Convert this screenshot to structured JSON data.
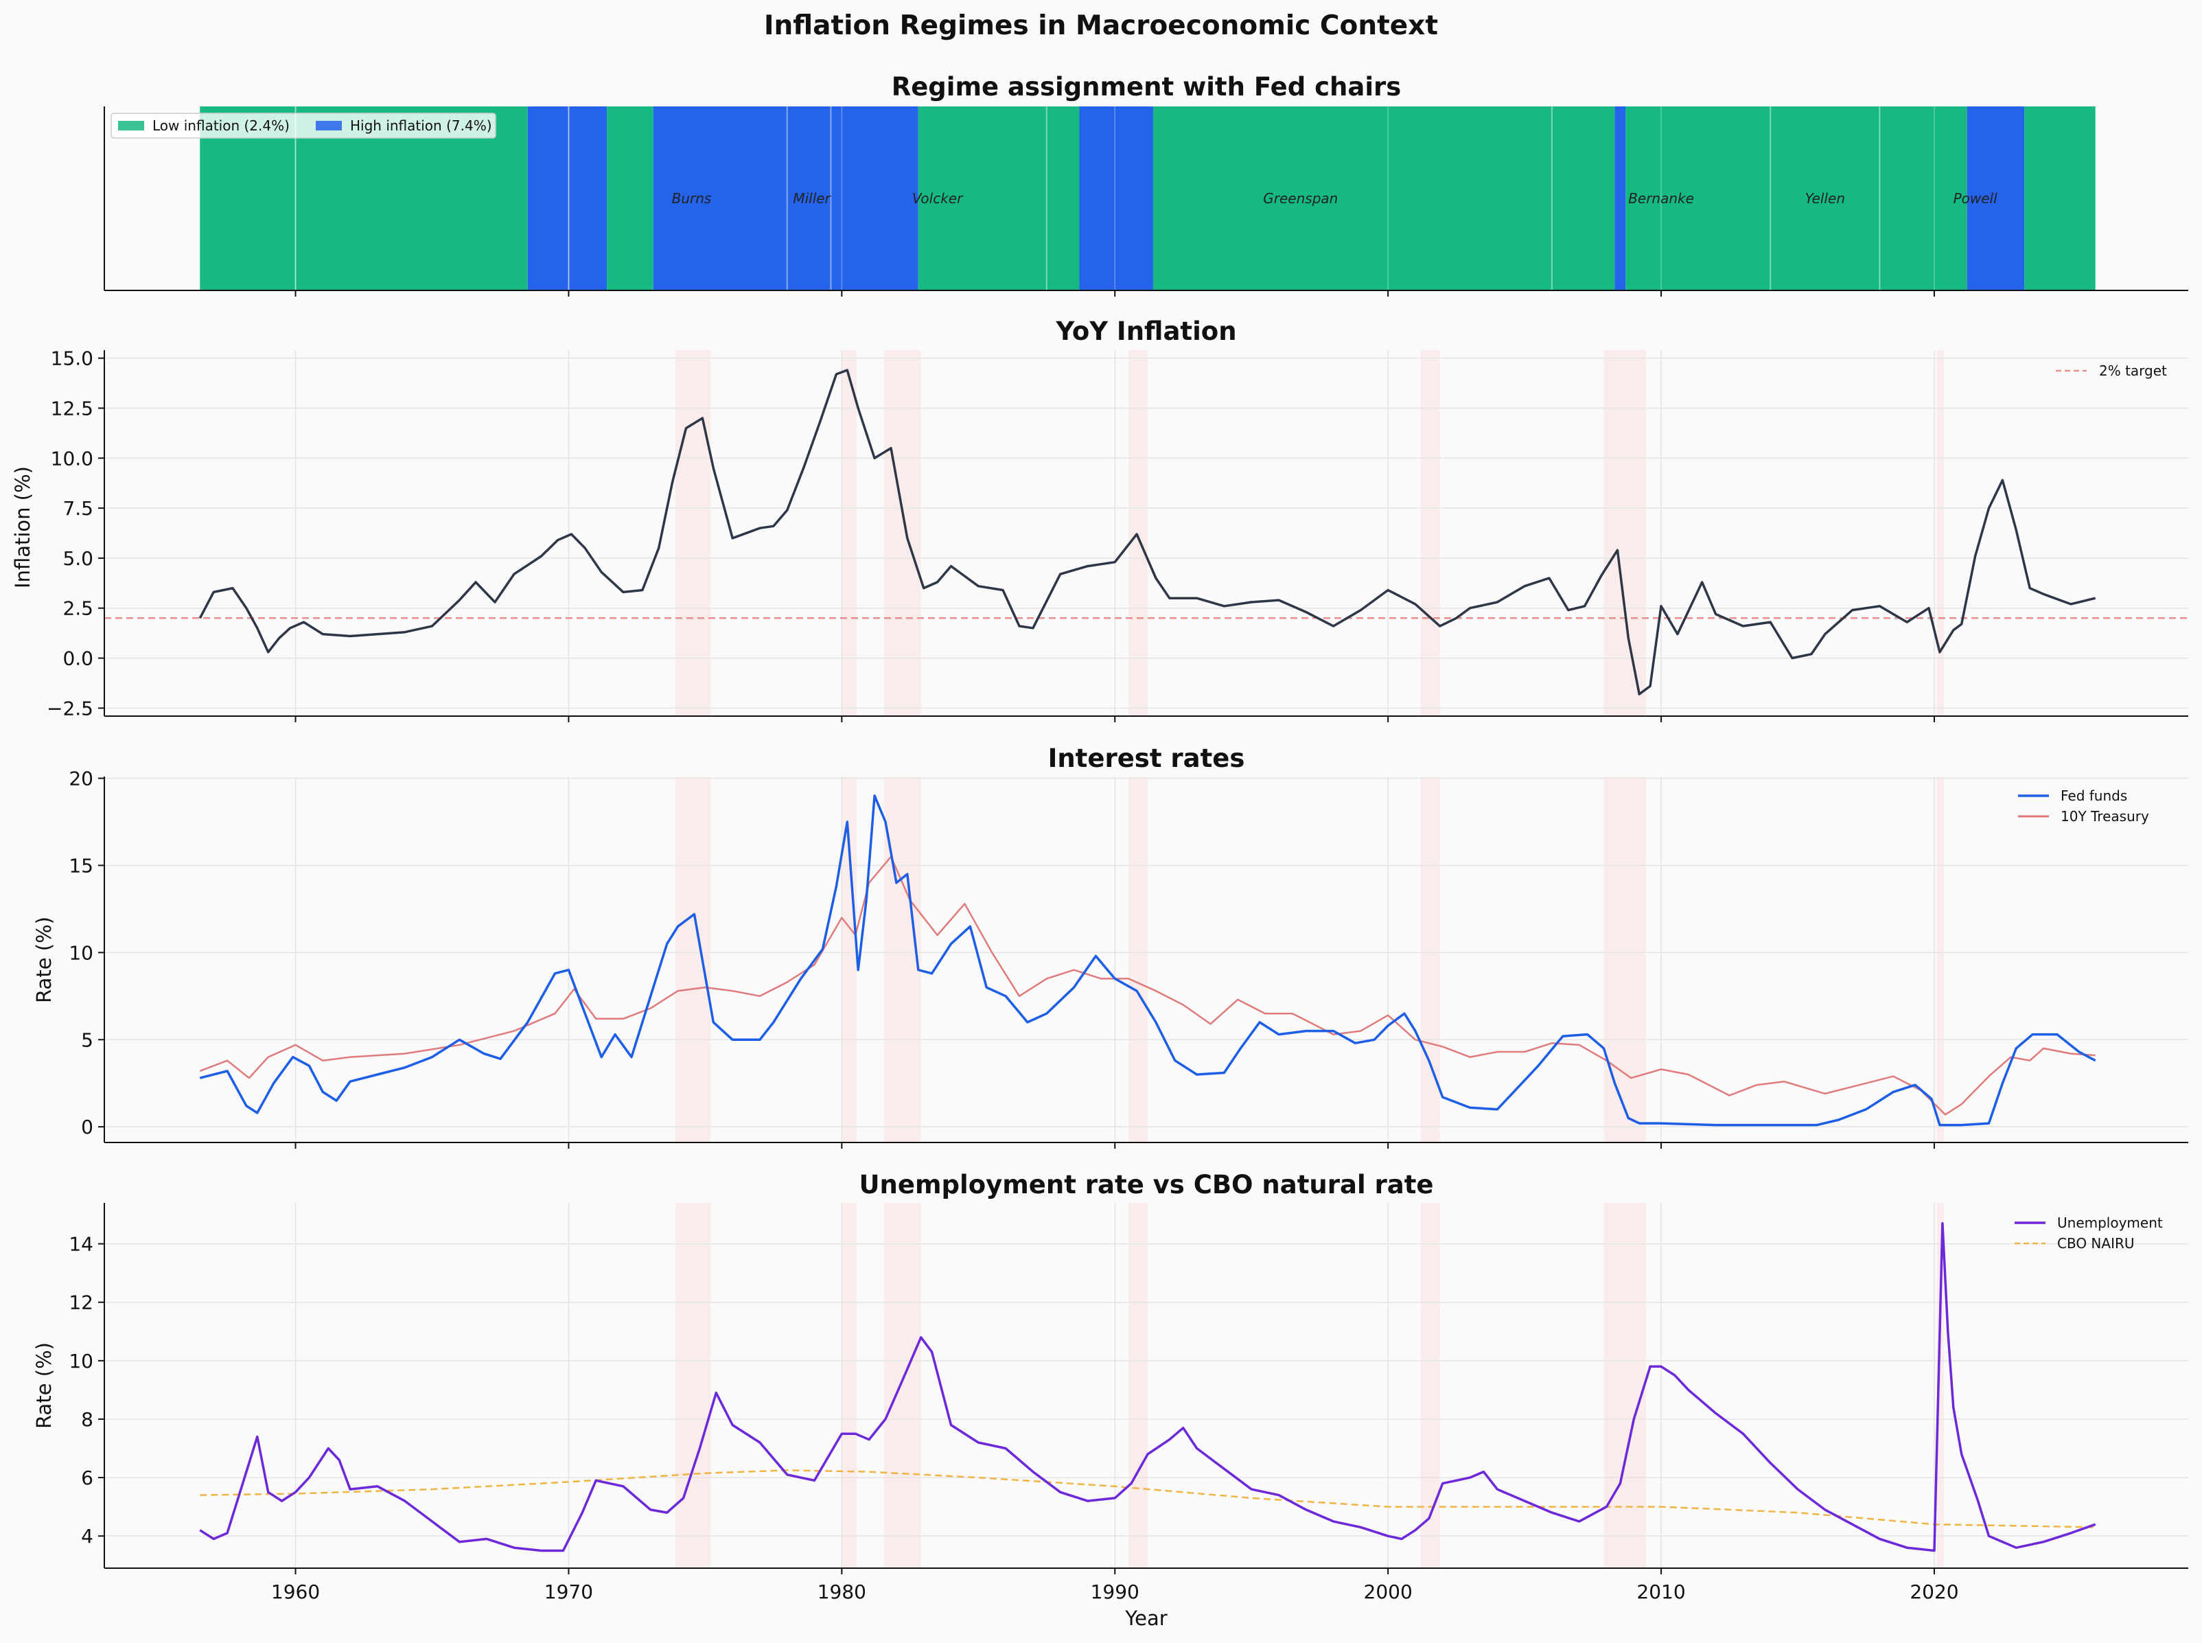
{
  "title": "Inflation Regimes in Macroeconomic Context",
  "x_axis": {
    "label": "Year",
    "range": [
      1953,
      2029.3
    ],
    "ticks": [
      1960,
      1970,
      1980,
      1990,
      2000,
      2010,
      2020
    ]
  },
  "recessions": [
    [
      1973.9,
      1975.2
    ],
    [
      1980.0,
      1980.55
    ],
    [
      1981.55,
      1982.9
    ],
    [
      1990.5,
      1991.2
    ],
    [
      2001.2,
      2001.9
    ],
    [
      2007.9,
      2009.45
    ],
    [
      2020.1,
      2020.35
    ]
  ],
  "colors": {
    "low": "#16b981",
    "high": "#2563eb",
    "inflation": "#2d3748",
    "fedfunds": "#1d5ee6",
    "treasury": "#e07b7b",
    "unemployment": "#6d28d9",
    "nairu": "#f0b442",
    "target": "#e89090",
    "recession": "#fbe9e9"
  },
  "chart_data": [
    {
      "type": "area",
      "title": "Regime assignment with Fed chairs",
      "legend": [
        "Low inflation (2.4%)",
        "High inflation (7.4%)"
      ],
      "legend_position": "upper left",
      "regimes": [
        {
          "start": 1956.5,
          "end": 1968.5,
          "regime": "low"
        },
        {
          "start": 1968.5,
          "end": 1971.4,
          "regime": "high"
        },
        {
          "start": 1971.4,
          "end": 1973.1,
          "regime": "low"
        },
        {
          "start": 1973.1,
          "end": 1982.8,
          "regime": "high"
        },
        {
          "start": 1982.8,
          "end": 1988.7,
          "regime": "low"
        },
        {
          "start": 1988.7,
          "end": 1991.4,
          "regime": "high"
        },
        {
          "start": 1991.4,
          "end": 2008.3,
          "regime": "low"
        },
        {
          "start": 2008.3,
          "end": 2008.7,
          "regime": "high"
        },
        {
          "start": 2008.7,
          "end": 2021.2,
          "regime": "low"
        },
        {
          "start": 2021.2,
          "end": 2023.3,
          "regime": "high"
        },
        {
          "start": 2023.3,
          "end": 2025.9,
          "regime": "low"
        }
      ],
      "chair_changes": [
        1960,
        1970,
        1978,
        1979.6,
        1987.5,
        2006.0,
        2014.0,
        2018.0
      ],
      "chairs": [
        {
          "name": "Burns",
          "x": 1974.5
        },
        {
          "name": "Miller",
          "x": 1978.9
        },
        {
          "name": "Volcker",
          "x": 1983.5
        },
        {
          "name": "Greenspan",
          "x": 1996.8
        },
        {
          "name": "Bernanke",
          "x": 2010.0
        },
        {
          "name": "Yellen",
          "x": 2016.0
        },
        {
          "name": "Powell",
          "x": 2021.5
        }
      ]
    },
    {
      "type": "line",
      "title": "YoY Inflation",
      "ylabel": "Inflation (%)",
      "ylim": [
        -2.9,
        15.4
      ],
      "yticks": [
        -2.5,
        0.0,
        2.5,
        5.0,
        7.5,
        10.0,
        12.5,
        15.0
      ],
      "ytick_labels": [
        "−2.5",
        "0.0",
        "2.5",
        "5.0",
        "7.5",
        "10.0",
        "12.5",
        "15.0"
      ],
      "hline": {
        "y": 2.0,
        "name": "2% target"
      },
      "legend_position": "upper right",
      "series": [
        {
          "name": "Inflation",
          "x": [
            1956.5,
            1957,
            1957.7,
            1958.2,
            1958.6,
            1959.0,
            1959.4,
            1959.8,
            1960.3,
            1961,
            1962,
            1963,
            1964,
            1965,
            1966,
            1966.6,
            1967.3,
            1968,
            1969,
            1969.6,
            1970.1,
            1970.6,
            1971.2,
            1972,
            1972.7,
            1973.3,
            1973.8,
            1974.3,
            1974.9,
            1975.3,
            1976,
            1977,
            1977.5,
            1978,
            1978.6,
            1979.2,
            1979.8,
            1980.2,
            1980.6,
            1981.2,
            1981.8,
            1982.4,
            1983,
            1983.5,
            1984,
            1985,
            1985.9,
            1986.5,
            1987,
            1988,
            1989,
            1990,
            1990.8,
            1991.5,
            1992,
            1993,
            1994,
            1995,
            1996,
            1997,
            1998,
            1999,
            2000,
            2001,
            2001.9,
            2002.5,
            2003,
            2004,
            2005,
            2005.9,
            2006.6,
            2007.2,
            2007.8,
            2008.4,
            2008.8,
            2009.2,
            2009.6,
            2010,
            2010.6,
            2011.5,
            2012,
            2013,
            2014,
            2014.8,
            2015.5,
            2016,
            2017,
            2018,
            2019,
            2019.8,
            2020.2,
            2020.7,
            2021,
            2021.5,
            2022.0,
            2022.5,
            2023.0,
            2023.5,
            2024,
            2025,
            2025.9
          ],
          "y": [
            2.0,
            3.3,
            3.5,
            2.5,
            1.5,
            0.3,
            1.0,
            1.5,
            1.8,
            1.2,
            1.1,
            1.2,
            1.3,
            1.6,
            2.9,
            3.8,
            2.8,
            4.2,
            5.1,
            5.9,
            6.2,
            5.5,
            4.3,
            3.3,
            3.4,
            5.5,
            8.8,
            11.5,
            12.0,
            9.5,
            6.0,
            6.5,
            6.6,
            7.4,
            9.5,
            11.8,
            14.2,
            14.4,
            12.5,
            10.0,
            10.5,
            6.0,
            3.5,
            3.8,
            4.6,
            3.6,
            3.4,
            1.6,
            1.5,
            4.2,
            4.6,
            4.8,
            6.2,
            4.0,
            3.0,
            3.0,
            2.6,
            2.8,
            2.9,
            2.3,
            1.6,
            2.4,
            3.4,
            2.7,
            1.6,
            2.0,
            2.5,
            2.8,
            3.6,
            4.0,
            2.4,
            2.6,
            4.1,
            5.4,
            1.0,
            -1.8,
            -1.4,
            2.6,
            1.2,
            3.8,
            2.2,
            1.6,
            1.8,
            0.0,
            0.2,
            1.2,
            2.4,
            2.6,
            1.8,
            2.5,
            0.3,
            1.4,
            1.7,
            5.1,
            7.5,
            8.9,
            6.4,
            3.5,
            3.2,
            2.7,
            3.0
          ]
        }
      ]
    },
    {
      "type": "line",
      "title": "Interest rates",
      "ylabel": "Rate (%)",
      "ylim": [
        -0.9,
        20.1
      ],
      "yticks": [
        0,
        5,
        10,
        15,
        20
      ],
      "legend_position": "upper right",
      "series": [
        {
          "name": "Fed funds",
          "x": [
            1956.5,
            1957.5,
            1958.2,
            1958.6,
            1959.2,
            1959.9,
            1960.5,
            1961,
            1961.5,
            1962,
            1963,
            1964,
            1965,
            1966,
            1966.9,
            1967.5,
            1968.5,
            1969.5,
            1970,
            1970.6,
            1971.2,
            1971.7,
            1972.3,
            1973,
            1973.6,
            1974,
            1974.6,
            1975.3,
            1976,
            1977,
            1977.5,
            1978.5,
            1979.3,
            1979.8,
            1980.2,
            1980.6,
            1980.9,
            1981.2,
            1981.6,
            1982,
            1982.4,
            1982.8,
            1983.3,
            1984,
            1984.7,
            1985.3,
            1986,
            1986.8,
            1987.5,
            1988.5,
            1989.3,
            1990,
            1990.8,
            1991.5,
            1992.2,
            1993,
            1994,
            1994.6,
            1995.3,
            1996,
            1997,
            1998,
            1998.8,
            1999.5,
            2000,
            2000.6,
            2001,
            2001.5,
            2002,
            2003,
            2004,
            2004.6,
            2005.5,
            2006.4,
            2007.3,
            2007.9,
            2008.3,
            2008.8,
            2009.2,
            2010,
            2012,
            2014,
            2015.7,
            2016.5,
            2017.5,
            2018.5,
            2019.3,
            2019.9,
            2020.2,
            2021,
            2022.0,
            2022.5,
            2023.0,
            2023.6,
            2024.5,
            2025.3,
            2025.9
          ],
          "y": [
            2.8,
            3.2,
            1.2,
            0.8,
            2.5,
            4.0,
            3.5,
            2.0,
            1.5,
            2.6,
            3.0,
            3.4,
            4.0,
            5.0,
            4.2,
            3.9,
            6.0,
            8.8,
            9.0,
            6.5,
            4.0,
            5.3,
            4.0,
            7.5,
            10.5,
            11.5,
            12.2,
            6.0,
            5.0,
            5.0,
            6.0,
            8.5,
            10.2,
            13.8,
            17.5,
            9.0,
            13.0,
            19.0,
            17.5,
            14.0,
            14.5,
            9.0,
            8.8,
            10.5,
            11.5,
            8.0,
            7.5,
            6.0,
            6.5,
            8.0,
            9.8,
            8.5,
            7.8,
            6.0,
            3.8,
            3.0,
            3.1,
            4.5,
            6.0,
            5.3,
            5.5,
            5.5,
            4.8,
            5.0,
            5.8,
            6.5,
            5.5,
            3.8,
            1.7,
            1.1,
            1.0,
            2.0,
            3.5,
            5.2,
            5.3,
            4.5,
            2.5,
            0.5,
            0.2,
            0.2,
            0.1,
            0.1,
            0.1,
            0.4,
            1.0,
            2.0,
            2.4,
            1.6,
            0.1,
            0.1,
            0.2,
            2.5,
            4.5,
            5.3,
            5.3,
            4.3,
            3.8
          ]
        },
        {
          "name": "10Y Treasury",
          "x": [
            1956.5,
            1957.5,
            1958.3,
            1959,
            1960,
            1961,
            1962,
            1964,
            1966,
            1968,
            1969.5,
            1970.2,
            1971,
            1972,
            1973,
            1974,
            1975,
            1976,
            1977,
            1978,
            1979,
            1980,
            1980.5,
            1981,
            1981.8,
            1982.5,
            1983.5,
            1984.5,
            1985.5,
            1986.5,
            1987.5,
            1988.5,
            1989.5,
            1990.5,
            1991.5,
            1992.5,
            1993.5,
            1994.5,
            1995.5,
            1996.5,
            1998,
            1999,
            2000,
            2001,
            2002,
            2003,
            2004,
            2005,
            2006,
            2007,
            2008,
            2008.9,
            2010,
            2011,
            2012.5,
            2013.5,
            2014.5,
            2016,
            2017,
            2018.5,
            2019.5,
            2020.4,
            2021,
            2022,
            2022.8,
            2023.5,
            2024,
            2025,
            2025.9
          ],
          "y": [
            3.2,
            3.8,
            2.8,
            4.0,
            4.7,
            3.8,
            4.0,
            4.2,
            4.7,
            5.5,
            6.5,
            7.9,
            6.2,
            6.2,
            6.8,
            7.8,
            8.0,
            7.8,
            7.5,
            8.3,
            9.3,
            12.0,
            11.0,
            14.0,
            15.5,
            13.0,
            11.0,
            12.8,
            10.0,
            7.5,
            8.5,
            9.0,
            8.5,
            8.5,
            7.8,
            7.0,
            5.9,
            7.3,
            6.5,
            6.5,
            5.3,
            5.5,
            6.4,
            5.0,
            4.6,
            4.0,
            4.3,
            4.3,
            4.8,
            4.7,
            3.8,
            2.8,
            3.3,
            3.0,
            1.8,
            2.4,
            2.6,
            1.9,
            2.3,
            2.9,
            2.1,
            0.7,
            1.3,
            2.9,
            4.0,
            3.8,
            4.5,
            4.2,
            4.1
          ]
        }
      ]
    },
    {
      "type": "line",
      "title": "Unemployment rate vs CBO natural rate",
      "ylabel": "Rate (%)",
      "ylim": [
        2.9,
        15.4
      ],
      "yticks": [
        4,
        6,
        8,
        10,
        12,
        14
      ],
      "xlabel": "Year",
      "legend_position": "upper right",
      "series": [
        {
          "name": "Unemployment",
          "x": [
            1956.5,
            1957,
            1957.5,
            1958.3,
            1958.6,
            1959,
            1959.5,
            1960,
            1960.5,
            1961.2,
            1961.6,
            1962,
            1963,
            1964,
            1965,
            1966,
            1967,
            1968,
            1969,
            1969.8,
            1970.5,
            1971,
            1972,
            1973,
            1973.6,
            1974.2,
            1974.8,
            1975.4,
            1976,
            1977,
            1978,
            1979,
            1980,
            1980.5,
            1981,
            1981.6,
            1982.3,
            1982.9,
            1983.3,
            1984,
            1985,
            1986,
            1987,
            1988,
            1989,
            1990,
            1990.6,
            1991.2,
            1992,
            1992.5,
            1993,
            1994,
            1995,
            1996,
            1997,
            1998,
            1999,
            2000,
            2000.5,
            2001,
            2001.5,
            2002,
            2003,
            2003.5,
            2004,
            2005,
            2006,
            2007,
            2007.6,
            2008,
            2008.5,
            2009,
            2009.6,
            2010,
            2010.5,
            2011,
            2012,
            2013,
            2014,
            2015,
            2016,
            2017,
            2018,
            2019,
            2020.0,
            2020.3,
            2020.5,
            2020.7,
            2021,
            2021.3,
            2021.6,
            2022,
            2023,
            2024,
            2025,
            2025.9
          ],
          "y": [
            4.2,
            3.9,
            4.1,
            6.5,
            7.4,
            5.5,
            5.2,
            5.5,
            6.0,
            7.0,
            6.6,
            5.6,
            5.7,
            5.2,
            4.5,
            3.8,
            3.9,
            3.6,
            3.5,
            3.5,
            4.8,
            5.9,
            5.7,
            4.9,
            4.8,
            5.3,
            7.0,
            8.9,
            7.8,
            7.2,
            6.1,
            5.9,
            7.5,
            7.5,
            7.3,
            8.0,
            9.5,
            10.8,
            10.3,
            7.8,
            7.2,
            7.0,
            6.2,
            5.5,
            5.2,
            5.3,
            5.8,
            6.8,
            7.3,
            7.7,
            7.0,
            6.3,
            5.6,
            5.4,
            4.9,
            4.5,
            4.3,
            4.0,
            3.9,
            4.2,
            4.6,
            5.8,
            6.0,
            6.2,
            5.6,
            5.2,
            4.8,
            4.5,
            4.8,
            5.0,
            5.8,
            8.0,
            9.8,
            9.8,
            9.5,
            9.0,
            8.2,
            7.5,
            6.5,
            5.6,
            4.9,
            4.4,
            3.9,
            3.6,
            3.5,
            14.7,
            11.0,
            8.4,
            6.8,
            6.0,
            5.2,
            4.0,
            3.6,
            3.8,
            4.1,
            4.4
          ]
        },
        {
          "name": "CBO NAIRU",
          "x": [
            1956.5,
            1960,
            1965,
            1970,
            1975,
            1978,
            1981,
            1985,
            1990,
            1995,
            2000,
            2005,
            2010,
            2015,
            2020,
            2025.9
          ],
          "y": [
            5.4,
            5.45,
            5.6,
            5.85,
            6.15,
            6.25,
            6.2,
            6.0,
            5.7,
            5.3,
            5.0,
            5.0,
            5.0,
            4.8,
            4.4,
            4.3
          ]
        }
      ]
    }
  ]
}
